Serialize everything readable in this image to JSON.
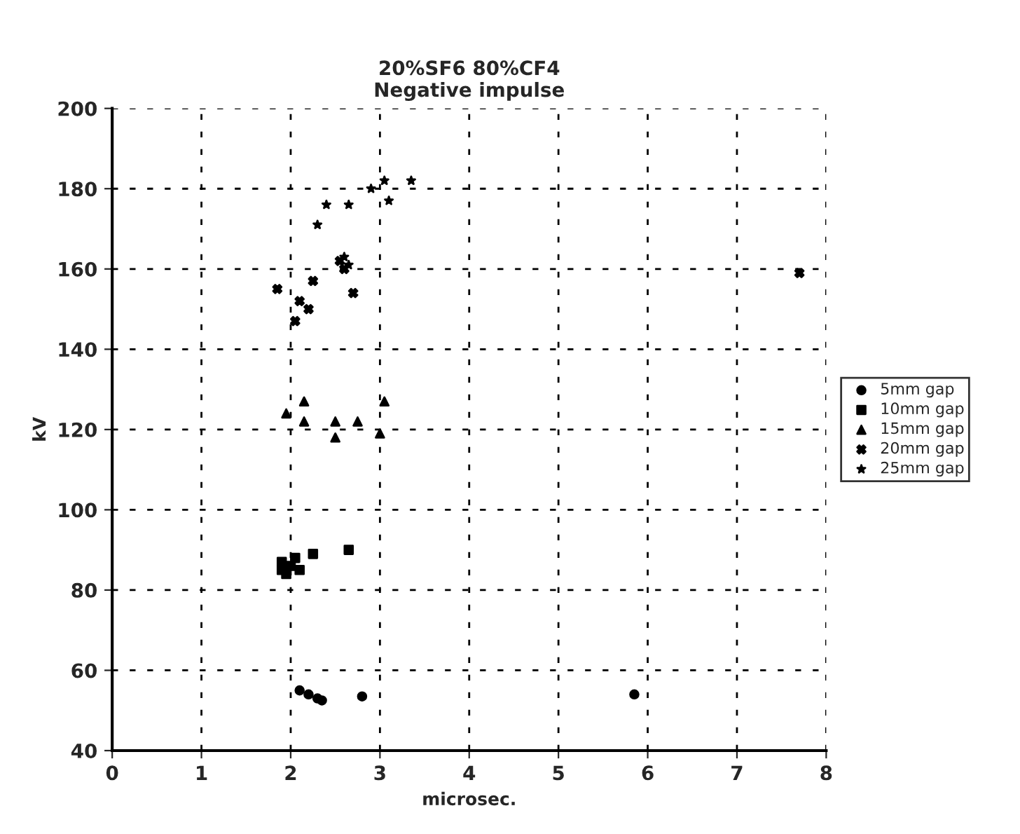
{
  "chart_data": {
    "type": "scatter",
    "title": "20%SF6 80%CF4\nNegative impulse",
    "xlabel": "microsec.",
    "ylabel": "kV",
    "xlim": [
      0,
      8
    ],
    "xticks": [
      0,
      1,
      2,
      3,
      4,
      5,
      6,
      7,
      8
    ],
    "ylim": [
      40,
      200
    ],
    "yticks": [
      40,
      60,
      80,
      100,
      120,
      140,
      160,
      180,
      200
    ],
    "grid": true,
    "legend": "right",
    "series": [
      {
        "name": "5mm gap",
        "color": "#000000",
        "marker": "circle",
        "x": [
          2.1,
          2.2,
          2.3,
          2.35,
          2.8,
          5.85
        ],
        "values": [
          55,
          54,
          53,
          52.5,
          53.5,
          54
        ]
      },
      {
        "name": "10mm gap",
        "color": "#000000",
        "marker": "square",
        "x": [
          1.9,
          1.95,
          2.0,
          2.05,
          2.1,
          2.25,
          2.65,
          1.9
        ],
        "values": [
          87,
          84,
          86,
          88,
          85,
          89,
          90,
          85
        ]
      },
      {
        "name": "15mm gap",
        "color": "#000000",
        "marker": "triangle",
        "x": [
          1.95,
          2.15,
          2.15,
          2.5,
          2.5,
          2.75,
          3.0,
          3.05
        ],
        "values": [
          124,
          127,
          122,
          122,
          118,
          122,
          119,
          127
        ]
      },
      {
        "name": "20mm gap",
        "color": "#000000",
        "marker": "cross",
        "x": [
          1.85,
          2.05,
          2.1,
          2.2,
          2.25,
          2.55,
          2.6,
          2.7,
          7.7
        ],
        "values": [
          155,
          147,
          152,
          150,
          157,
          162,
          160,
          154,
          159
        ]
      },
      {
        "name": "25mm gap",
        "color": "#000000",
        "marker": "star",
        "x": [
          2.3,
          2.4,
          2.65,
          2.9,
          3.05,
          3.1,
          3.35,
          2.6,
          2.65
        ],
        "values": [
          171,
          176,
          176,
          180,
          182,
          177,
          182,
          163,
          161
        ]
      }
    ]
  }
}
